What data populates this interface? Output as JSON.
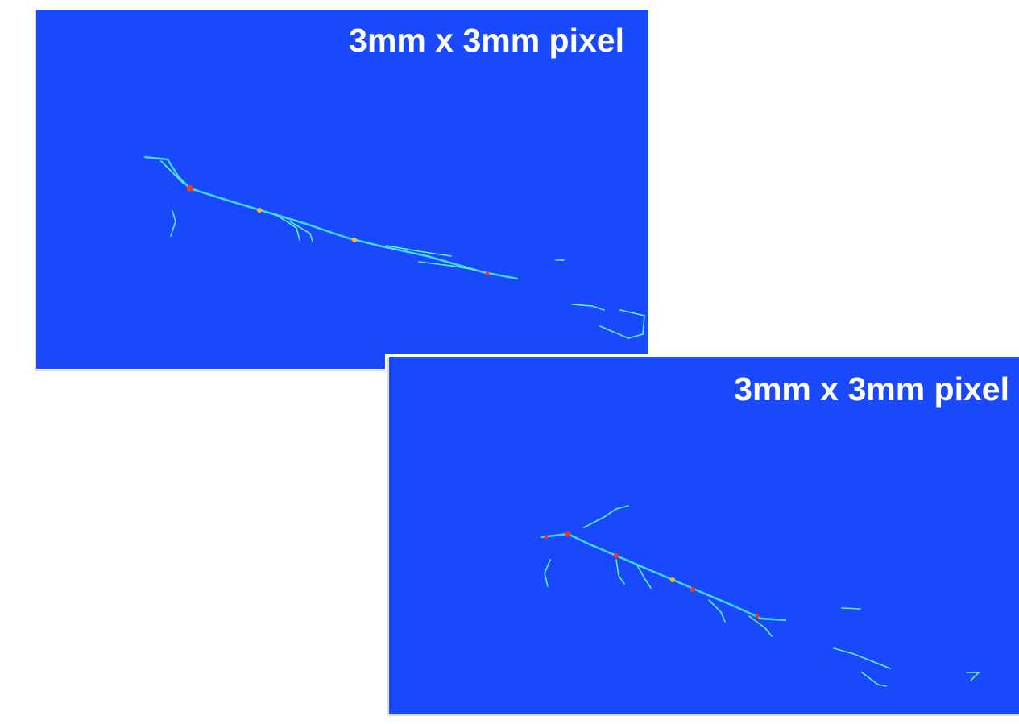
{
  "panels": [
    {
      "label": "3mm x 3mm pixel"
    },
    {
      "label": "3mm x 3mm pixel"
    }
  ]
}
